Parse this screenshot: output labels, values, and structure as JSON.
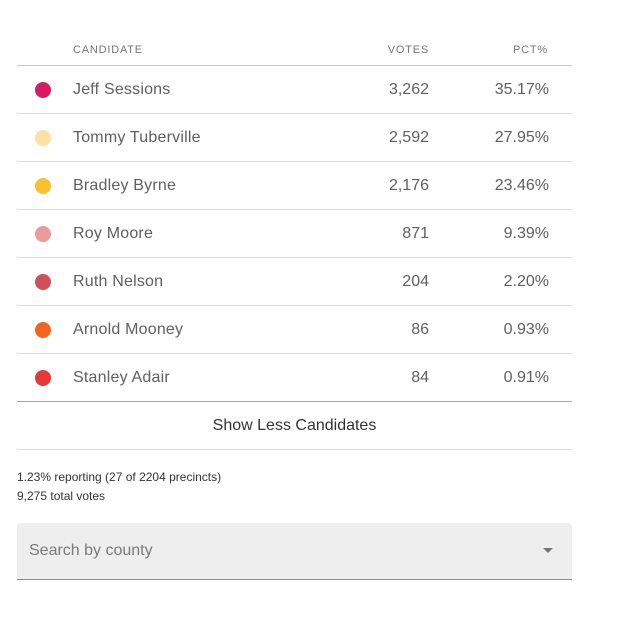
{
  "table": {
    "header": {
      "candidate": "CANDIDATE",
      "votes": "VOTES",
      "pct": "PCT%"
    },
    "rows": [
      {
        "name": "Jeff Sessions",
        "votes": "3,262",
        "pct": "35.17%",
        "color": "#d81b60"
      },
      {
        "name": "Tommy Tuberville",
        "votes": "2,592",
        "pct": "27.95%",
        "color": "#ffe0a3"
      },
      {
        "name": "Bradley Byrne",
        "votes": "2,176",
        "pct": "23.46%",
        "color": "#fbc02d"
      },
      {
        "name": "Roy Moore",
        "votes": "871",
        "pct": "9.39%",
        "color": "#ef9a9a"
      },
      {
        "name": "Ruth Nelson",
        "votes": "204",
        "pct": "2.20%",
        "color": "#d0505a"
      },
      {
        "name": "Arnold Mooney",
        "votes": "86",
        "pct": "0.93%",
        "color": "#f4641c"
      },
      {
        "name": "Stanley Adair",
        "votes": "84",
        "pct": "0.91%",
        "color": "#e53935"
      }
    ]
  },
  "toggle_label": "Show Less Candidates",
  "reporting": {
    "precincts": "1.23% reporting (27 of 2204 precincts)",
    "total_votes": "9,275 total votes"
  },
  "county_search": {
    "placeholder": "Search by county",
    "icon": "dropdown-arrow-icon"
  }
}
